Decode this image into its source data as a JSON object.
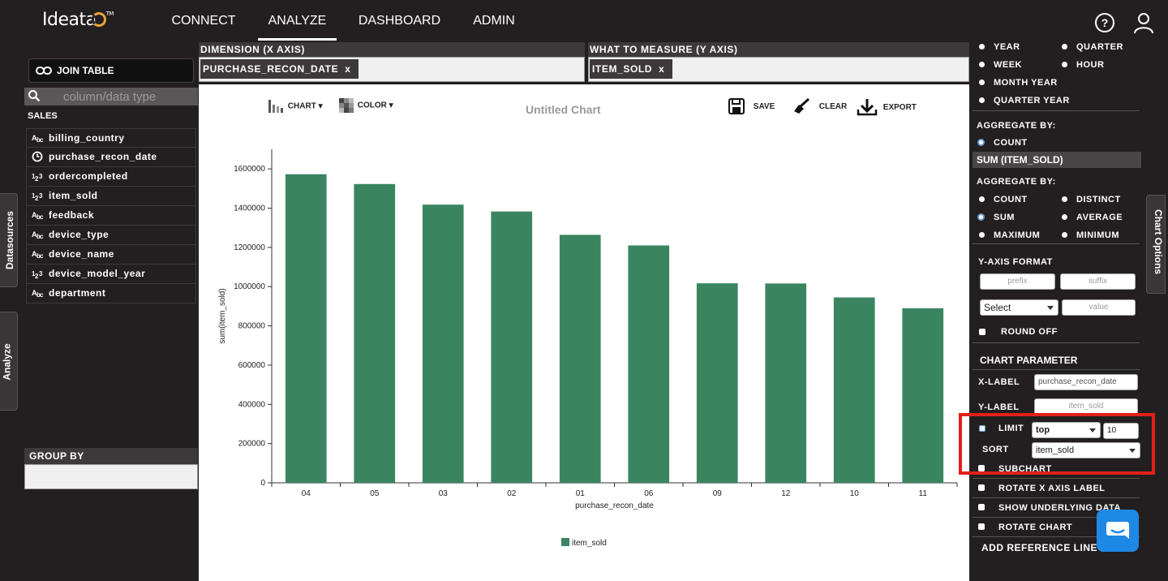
{
  "brand": {
    "logo": "Ideata",
    "tm": "TM"
  },
  "nav": [
    {
      "label": "CONNECT",
      "active": false
    },
    {
      "label": "ANALYZE",
      "active": true
    },
    {
      "label": "DASHBOARD",
      "active": false
    },
    {
      "label": "ADMIN",
      "active": false
    }
  ],
  "side_tabs": {
    "datasources": "Datasources",
    "analyze": "Analyze",
    "chart_options": "Chart Options"
  },
  "left": {
    "join_label": "JOIN TABLE",
    "search_placeholder": "column/data type",
    "table_name": "SALES",
    "fields": [
      {
        "name": "billing_country",
        "type": "ABC"
      },
      {
        "name": "purchase_recon_date",
        "type": "clock"
      },
      {
        "name": "ordercompleted",
        "type": "123"
      },
      {
        "name": "item_sold",
        "type": "123"
      },
      {
        "name": "feedback",
        "type": "ABC"
      },
      {
        "name": "device_type",
        "type": "ABC"
      },
      {
        "name": "device_name",
        "type": "ABC"
      },
      {
        "name": "device_model_year",
        "type": "123"
      },
      {
        "name": "department",
        "type": "ABC"
      }
    ],
    "group_by": "GROUP BY"
  },
  "dimension": {
    "title": "DIMENSION (X AXIS)",
    "chip": "PURCHASE_RECON_DATE",
    "remove": "x"
  },
  "measure": {
    "title": "WHAT TO MEASURE (Y AXIS)",
    "chip": "ITEM_SOLD",
    "remove": "x"
  },
  "toolbar": {
    "chart": "CHART",
    "color": "COLOR",
    "save": "SAVE",
    "clear": "CLEAR",
    "export": "EXPORT"
  },
  "chart_data": {
    "type": "bar",
    "title": "Untitled Chart",
    "xlabel": "purchase_recon_date",
    "ylabel": "sum(item_sold)",
    "categories": [
      "04",
      "05",
      "03",
      "02",
      "01",
      "06",
      "09",
      "12",
      "10",
      "11"
    ],
    "series": [
      {
        "name": "item_sold",
        "values": [
          1573000,
          1523000,
          1418000,
          1383000,
          1264000,
          1210000,
          1017000,
          1016000,
          945000,
          890000
        ]
      }
    ],
    "ylim": [
      0,
      1700000
    ],
    "yticks": [
      0,
      200000,
      400000,
      600000,
      800000,
      1000000,
      1200000,
      1400000,
      1600000
    ],
    "color": "#3a8560",
    "legend": "bottom-center",
    "grid": false
  },
  "right": {
    "date_options": [
      "YEAR",
      "QUARTER",
      "WEEK",
      "HOUR",
      "MONTH YEAR",
      "QUARTER YEAR"
    ],
    "aggregate_by": "AGGREGATE BY:",
    "count": "COUNT",
    "measure_header": "SUM (ITEM_SOLD)",
    "agg_options": [
      "COUNT",
      "DISTINCT",
      "SUM",
      "AVERAGE",
      "MAXIMUM",
      "MINIMUM"
    ],
    "yaxis_format": "Y-AXIS FORMAT",
    "prefix": "prefix",
    "suffix": "suffix",
    "select": "Select",
    "value": "value",
    "round_off": "ROUND OFF",
    "chart_parameter": "CHART PARAMETER",
    "x_label": "X-LABEL",
    "x_label_value": "purchase_recon_date",
    "y_label": "Y-LABEL",
    "y_label_value": "item_sold",
    "limit": "LIMIT",
    "limit_mode": "top",
    "limit_value": "10",
    "sort": "SORT",
    "sort_value": "item_sold",
    "subchart": "SUBCHART",
    "rotate_x": "ROTATE X AXIS LABEL",
    "show_underlying": "SHOW UNDERLYING DATA",
    "rotate_chart": "ROTATE CHART",
    "add_reference": "ADD REFERENCE LINE"
  }
}
